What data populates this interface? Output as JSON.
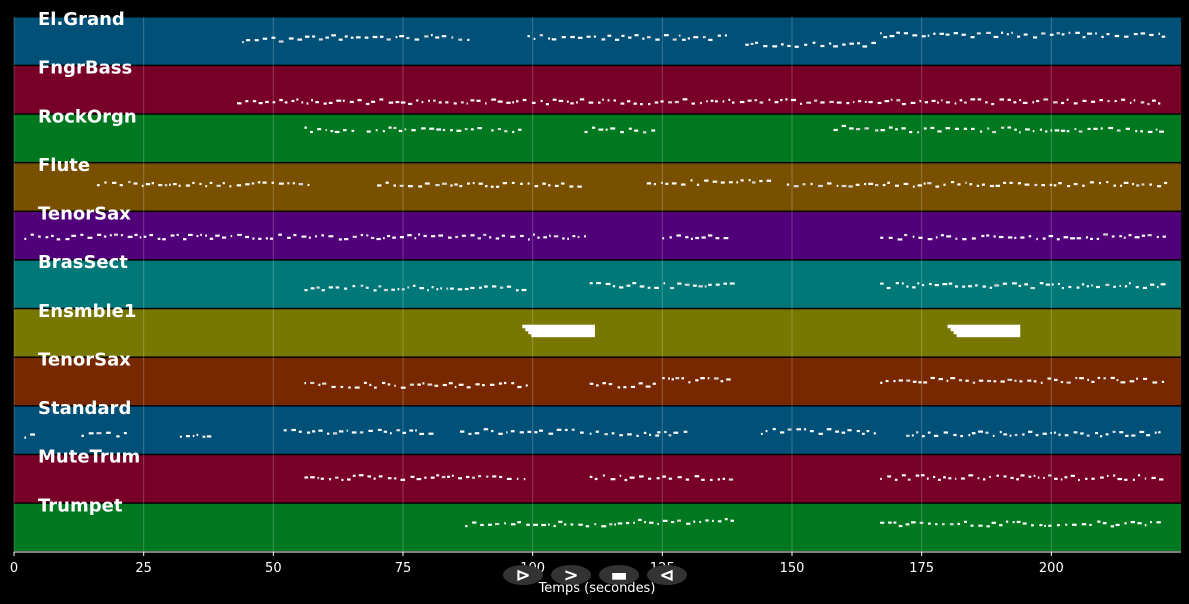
{
  "chart_data": {
    "type": "piano-roll",
    "title": "",
    "xlabel": "Temps (secondes)",
    "ylabel": "",
    "xlim": [
      0,
      225
    ],
    "xticks": [
      0,
      25,
      50,
      75,
      100,
      125,
      150,
      175,
      200
    ],
    "grid": "vertical",
    "tracks": [
      {
        "name": "El.Grand",
        "color": "#005078",
        "segments": [
          [
            44,
            52,
            0.45
          ],
          [
            53,
            88,
            0.4
          ],
          [
            99,
            138,
            0.4
          ],
          [
            141,
            167,
            0.55
          ],
          [
            167,
            222,
            0.35
          ]
        ]
      },
      {
        "name": "FngrBass",
        "color": "#780028",
        "segments": [
          [
            43,
            222,
            0.72
          ]
        ]
      },
      {
        "name": "RockOrgn",
        "color": "#007820",
        "segments": [
          [
            56,
            66,
            0.3
          ],
          [
            68,
            90,
            0.3
          ],
          [
            92,
            98,
            0.3
          ],
          [
            110,
            124,
            0.3
          ],
          [
            158,
            165,
            0.25
          ],
          [
            166,
            222,
            0.3
          ]
        ]
      },
      {
        "name": "Flute",
        "color": "#785000",
        "segments": [
          [
            16,
            57,
            0.42
          ],
          [
            70,
            109,
            0.42
          ],
          [
            122,
            146,
            0.38
          ],
          [
            149,
            222,
            0.42
          ]
        ]
      },
      {
        "name": "TenorSax",
        "color": "#500078",
        "segments": [
          [
            2,
            110,
            0.5
          ],
          [
            125,
            138,
            0.5
          ],
          [
            167,
            222,
            0.5
          ]
        ]
      },
      {
        "name": "BrasSect",
        "color": "#007878",
        "segments": [
          [
            56,
            99,
            0.55
          ],
          [
            111,
            138,
            0.5
          ],
          [
            167,
            222,
            0.5
          ]
        ]
      },
      {
        "name": "Ensmble1",
        "color": "#787800",
        "segments": [
          [
            98,
            112,
            0.45
          ],
          [
            180,
            194,
            0.45
          ]
        ]
      },
      {
        "name": "TenorSax",
        "color": "#782800",
        "segments": [
          [
            56,
            99,
            0.55
          ],
          [
            111,
            124,
            0.55
          ],
          [
            125,
            138,
            0.45
          ],
          [
            167,
            222,
            0.45
          ]
        ]
      },
      {
        "name": "Standard",
        "color": "#005078",
        "segments": [
          [
            2,
            4,
            0.6
          ],
          [
            13,
            22,
            0.55
          ],
          [
            32,
            38,
            0.6
          ],
          [
            52,
            80,
            0.5
          ],
          [
            86,
            110,
            0.5
          ],
          [
            111,
            124,
            0.55
          ],
          [
            124,
            130,
            0.55
          ],
          [
            144,
            166,
            0.5
          ],
          [
            172,
            222,
            0.55
          ]
        ]
      },
      {
        "name": "MuteTrum",
        "color": "#780028",
        "segments": [
          [
            56,
            99,
            0.45
          ],
          [
            111,
            124,
            0.45
          ],
          [
            125,
            138,
            0.45
          ],
          [
            167,
            222,
            0.45
          ]
        ]
      },
      {
        "name": "Trumpet",
        "color": "#007820",
        "segments": [
          [
            87,
            118,
            0.4
          ],
          [
            118,
            139,
            0.35
          ],
          [
            167,
            222,
            0.4
          ]
        ]
      }
    ]
  },
  "controls": [
    {
      "name": "play-button",
      "glyph": "⊳"
    },
    {
      "name": "fast-forward-button",
      "glyph": ">"
    },
    {
      "name": "stop-button",
      "glyph": "▬"
    },
    {
      "name": "rewind-button",
      "glyph": "⊲"
    }
  ]
}
